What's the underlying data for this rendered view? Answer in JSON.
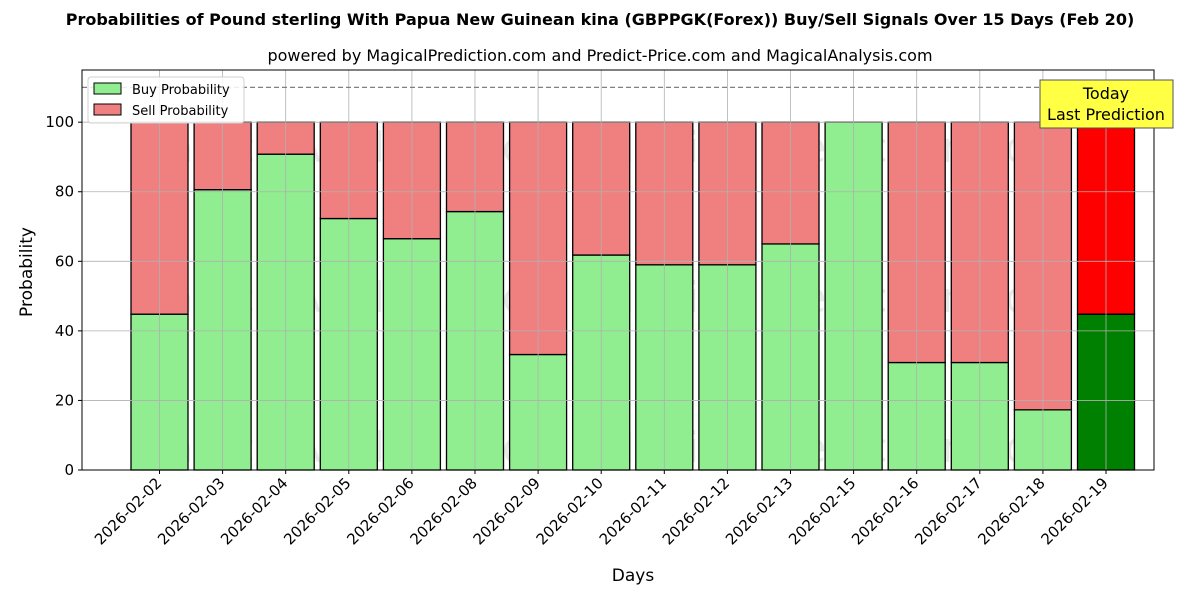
{
  "chart_data": {
    "type": "bar",
    "stacked": true,
    "title": "Probabilities of Pound sterling With Papua New Guinean kina (GBPPGK(Forex)) Buy/Sell Signals Over 15 Days (Feb 20)",
    "subtitle": "powered by MagicalPrediction.com and Predict-Price.com and MagicalAnalysis.com",
    "xlabel": "Days",
    "ylabel": "Probability",
    "ylim": [
      0,
      115
    ],
    "yticks": [
      0,
      20,
      40,
      60,
      80,
      100
    ],
    "grid": true,
    "legend_position": "upper left",
    "reference_line": {
      "y": 110,
      "style": "dashed"
    },
    "categories": [
      "2026-02-02",
      "2026-02-03",
      "2026-02-04",
      "2026-02-05",
      "2026-02-06",
      "2026-02-08",
      "2026-02-09",
      "2026-02-10",
      "2026-02-11",
      "2026-02-12",
      "2026-02-13",
      "2026-02-15",
      "2026-02-16",
      "2026-02-17",
      "2026-02-18",
      "2026-02-19"
    ],
    "series": [
      {
        "name": "Buy Probability",
        "color": "#90ee90",
        "values": [
          44.8,
          80.6,
          90.8,
          72.3,
          66.5,
          74.3,
          33.2,
          61.8,
          59.0,
          59.0,
          65.0,
          100.0,
          30.9,
          30.9,
          17.3,
          44.8
        ]
      },
      {
        "name": "Sell Probability",
        "color": "#f08080",
        "values": [
          55.2,
          19.4,
          9.2,
          27.7,
          33.5,
          25.7,
          66.8,
          38.2,
          41.0,
          41.0,
          35.0,
          0.0,
          69.1,
          69.1,
          82.7,
          55.2
        ]
      }
    ],
    "highlight": {
      "index": 15,
      "buy_color": "#008000",
      "sell_color": "#ff0000"
    },
    "annotation": {
      "text_line1": "Today",
      "text_line2": "Last Prediction",
      "bg": "#ffff44"
    },
    "watermarks": [
      "MagicalAnalysis.com",
      "MagicalPrediction.com"
    ]
  }
}
